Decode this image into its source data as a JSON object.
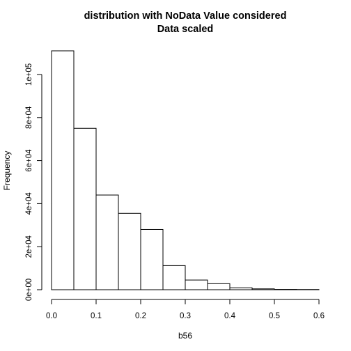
{
  "chart_data": {
    "type": "bar",
    "title_lines": [
      "distribution with NoData Value considered",
      "Data scaled"
    ],
    "xlabel": "b56",
    "ylabel": "Frequency",
    "bin_edges": [
      0.0,
      0.05,
      0.1,
      0.15,
      0.2,
      0.25,
      0.3,
      0.35,
      0.4,
      0.45,
      0.5,
      0.55,
      0.6
    ],
    "values": [
      111000,
      75000,
      44000,
      35500,
      28000,
      11200,
      4500,
      2800,
      900,
      400,
      150,
      100
    ],
    "xlim": [
      0.0,
      0.6
    ],
    "ylim": [
      0,
      111000
    ],
    "x_ticks": [
      0.0,
      0.1,
      0.2,
      0.3,
      0.4,
      0.5,
      0.6
    ],
    "x_tick_labels": [
      "0.0",
      "0.1",
      "0.2",
      "0.3",
      "0.4",
      "0.5",
      "0.6"
    ],
    "y_ticks": [
      0,
      20000,
      40000,
      60000,
      80000,
      100000
    ],
    "y_tick_labels": [
      "0e+00",
      "2e+04",
      "4e+04",
      "6e+04",
      "8e+04",
      "1e+05"
    ],
    "grid": false,
    "bar_fill": "#ffffff",
    "bar_stroke": "#000000"
  }
}
